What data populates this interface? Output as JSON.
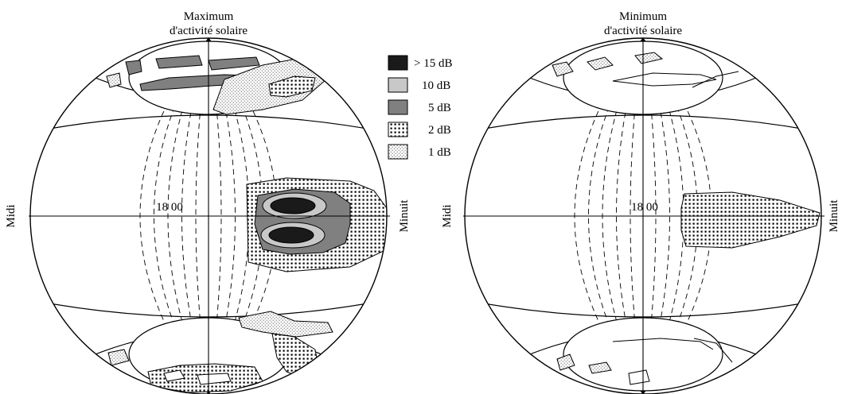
{
  "panels": [
    {
      "title_line1": "Maximum",
      "title_line2": "d'activité solaire",
      "center_label": "18 00",
      "left_label": "Midi",
      "right_label": "Minuit"
    },
    {
      "title_line1": "Minimum",
      "title_line2": "d'activité solaire",
      "center_label": "18 00",
      "left_label": "Midi",
      "right_label": "Minuit"
    }
  ],
  "legend": [
    {
      "label": "> 15 dB",
      "pattern": "solid-black",
      "color": "#1a1a1a"
    },
    {
      "label": "10 dB",
      "pattern": "solid-light-gray",
      "color": "#c8c8c8"
    },
    {
      "label": "5 dB",
      "pattern": "solid-dark-gray",
      "color": "#808080"
    },
    {
      "label": "2 dB",
      "pattern": "dense-dots",
      "color": "#000000"
    },
    {
      "label": "1 dB",
      "pattern": "sparse-dots",
      "color": "#555555"
    }
  ]
}
